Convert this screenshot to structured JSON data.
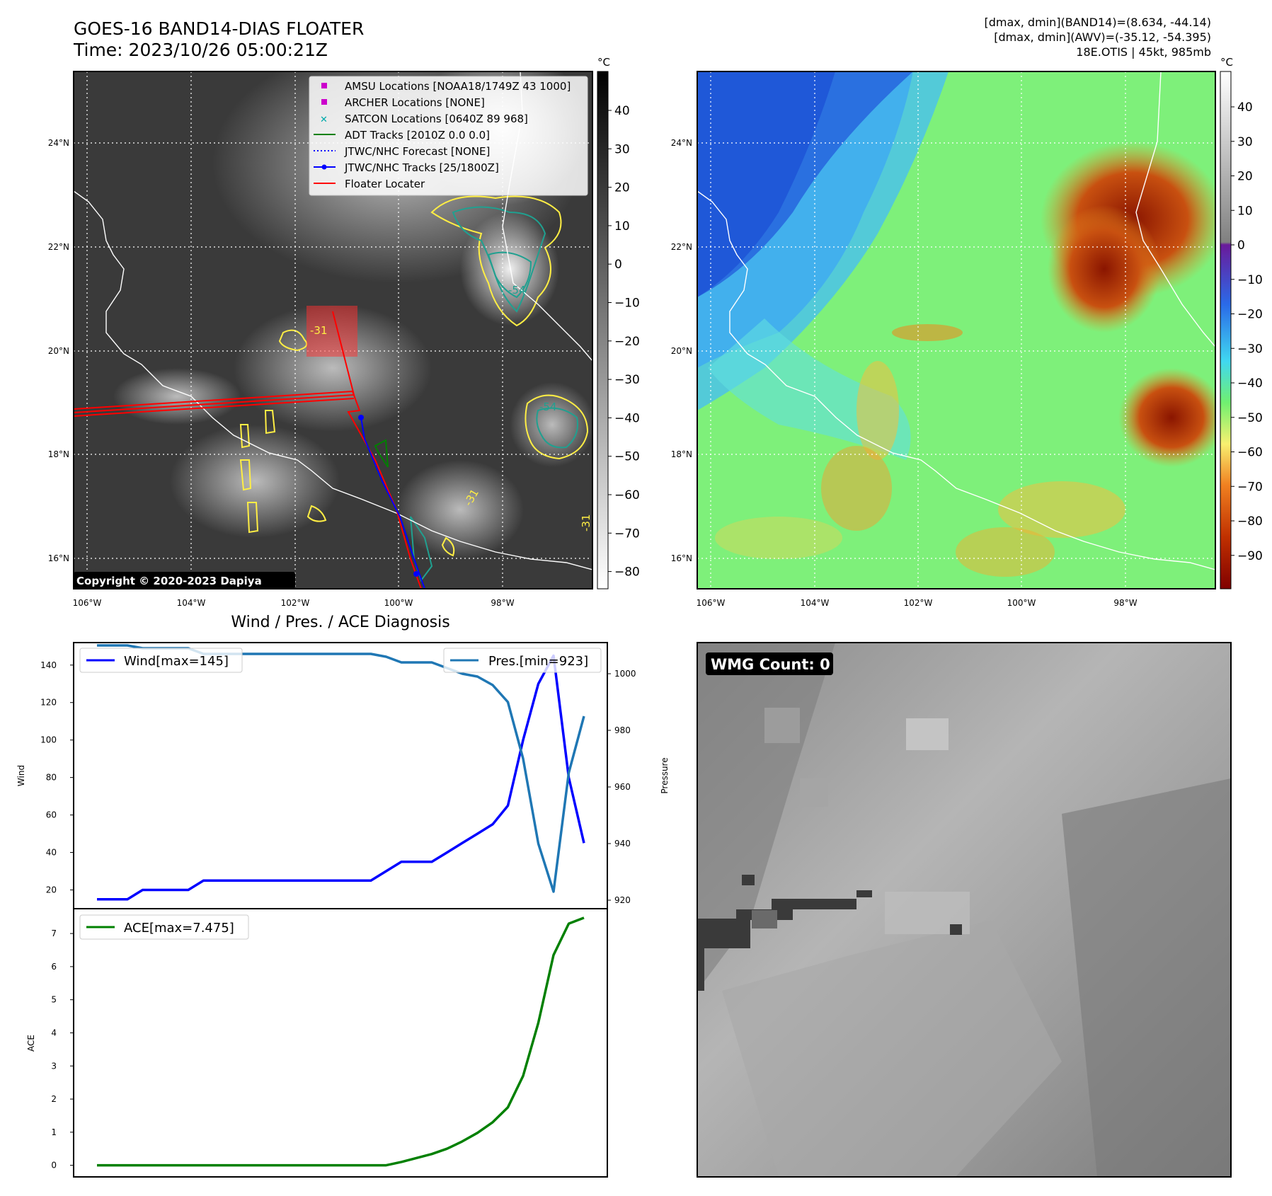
{
  "header": {
    "title": "GOES-16 BAND14-DIAS FLOATER",
    "time": "Time: 2023/10/26 05:00:21Z",
    "stat1": "[dmax, dmin](BAND14)=(8.634, -44.14)",
    "stat2": "[dmax, dmin](AWV)=(-35.12, -54.395)",
    "storm": "18E.OTIS | 45kt, 985mb"
  },
  "map_axes": {
    "lat_ticks": [
      "24°N",
      "22°N",
      "20°N",
      "18°N",
      "16°N"
    ],
    "lon_ticks": [
      "106°W",
      "104°W",
      "102°W",
      "100°W",
      "98°W"
    ],
    "unit": "°C"
  },
  "ir_colorbar_ticks": [
    "40",
    "30",
    "20",
    "10",
    "0",
    "−10",
    "−20",
    "−30",
    "−40",
    "−50",
    "−60",
    "−70",
    "−80"
  ],
  "awv_colorbar_ticks": [
    "40",
    "30",
    "20",
    "10",
    "0",
    "−10",
    "−20",
    "−30",
    "−40",
    "−50",
    "−60",
    "−70",
    "−80",
    "−90"
  ],
  "legend": {
    "items": [
      {
        "label": "AMSU Locations [NOAA18/1749Z 43 1000]",
        "color": "#cc00cc",
        "marker": "square"
      },
      {
        "label": "ARCHER Locations [NONE]",
        "color": "#cc00cc",
        "marker": "square"
      },
      {
        "label": "SATCON Locations [0640Z 89 968]",
        "color": "#00aaaa",
        "marker": "x"
      },
      {
        "label": "ADT Tracks [2010Z 0.0 0.0]",
        "color": "#008000",
        "marker": "line"
      },
      {
        "label": "JTWC/NHC Forecast [NONE]",
        "color": "#0000ff",
        "marker": "dotted"
      },
      {
        "label": "JTWC/NHC Tracks [25/1800Z]",
        "color": "#0000ff",
        "marker": "line-dot"
      },
      {
        "label": "Floater Locater",
        "color": "#ff0000",
        "marker": "line"
      }
    ]
  },
  "contour_labels": {
    "c1": "-31",
    "c2": "-54",
    "c3": "-54",
    "c4": "-31",
    "c5": "-31"
  },
  "copyright": "Copyright © 2020-2023 Dapiya",
  "wmg": {
    "label": "WMG Count: 0"
  },
  "diag": {
    "title": "Wind / Pres. / ACE Diagnosis",
    "wind_ylabel": "Wind",
    "pres_ylabel": "Pressure",
    "ace_ylabel": "ACE",
    "legend_wind": "Wind[max=145]",
    "legend_pres": "Pres.[min=923]",
    "legend_ace": "ACE[max=7.475]",
    "wind_ticks": [
      "140",
      "120",
      "100",
      "80",
      "60",
      "40",
      "20"
    ],
    "pres_ticks": [
      "1000",
      "980",
      "960",
      "940",
      "920"
    ],
    "ace_ticks": [
      "7",
      "6",
      "5",
      "4",
      "3",
      "2",
      "1",
      "0"
    ],
    "colors": {
      "wind": "#0000ff",
      "pres": "#1f77b4",
      "ace": "#008000"
    }
  },
  "chart_data": [
    {
      "type": "line",
      "title": "Wind / Pres. / ACE Diagnosis",
      "ylabel": "Wind",
      "y2label": "Pressure",
      "ylim": [
        10,
        152
      ],
      "y2lim": [
        917,
        1011
      ],
      "x": [
        0,
        1,
        2,
        3,
        4,
        5,
        6,
        7,
        8,
        9,
        10,
        11,
        12,
        13,
        14,
        15,
        16,
        17,
        18,
        19,
        20,
        21,
        22,
        23,
        24,
        25,
        26,
        27,
        28,
        29,
        30,
        31,
        32
      ],
      "series": [
        {
          "name": "Wind[max=145]",
          "axis": "left",
          "values": [
            15,
            15,
            15,
            20,
            20,
            20,
            20,
            25,
            25,
            25,
            25,
            25,
            25,
            25,
            25,
            25,
            25,
            25,
            25,
            30,
            35,
            35,
            35,
            40,
            45,
            50,
            55,
            65,
            100,
            130,
            145,
            80,
            45
          ]
        },
        {
          "name": "Pres.[min=923]",
          "axis": "right",
          "values": [
            1010,
            1010,
            1010,
            1009,
            1009,
            1009,
            1009,
            1007,
            1007,
            1007,
            1007,
            1007,
            1007,
            1007,
            1007,
            1007,
            1007,
            1007,
            1007,
            1006,
            1004,
            1004,
            1004,
            1002,
            1000,
            999,
            996,
            990,
            970,
            940,
            923,
            965,
            985
          ]
        }
      ]
    },
    {
      "type": "line",
      "ylabel": "ACE",
      "ylim": [
        -0.35,
        7.75
      ],
      "x": [
        0,
        1,
        2,
        3,
        4,
        5,
        6,
        7,
        8,
        9,
        10,
        11,
        12,
        13,
        14,
        15,
        16,
        17,
        18,
        19,
        20,
        21,
        22,
        23,
        24,
        25,
        26,
        27,
        28,
        29,
        30,
        31,
        32
      ],
      "series": [
        {
          "name": "ACE[max=7.475]",
          "values": [
            0,
            0,
            0,
            0,
            0,
            0,
            0,
            0,
            0,
            0,
            0,
            0,
            0,
            0,
            0,
            0,
            0,
            0,
            0,
            0,
            0.1,
            0.22,
            0.34,
            0.5,
            0.72,
            0.98,
            1.3,
            1.75,
            2.7,
            4.3,
            6.35,
            7.3,
            7.475
          ]
        }
      ]
    }
  ]
}
